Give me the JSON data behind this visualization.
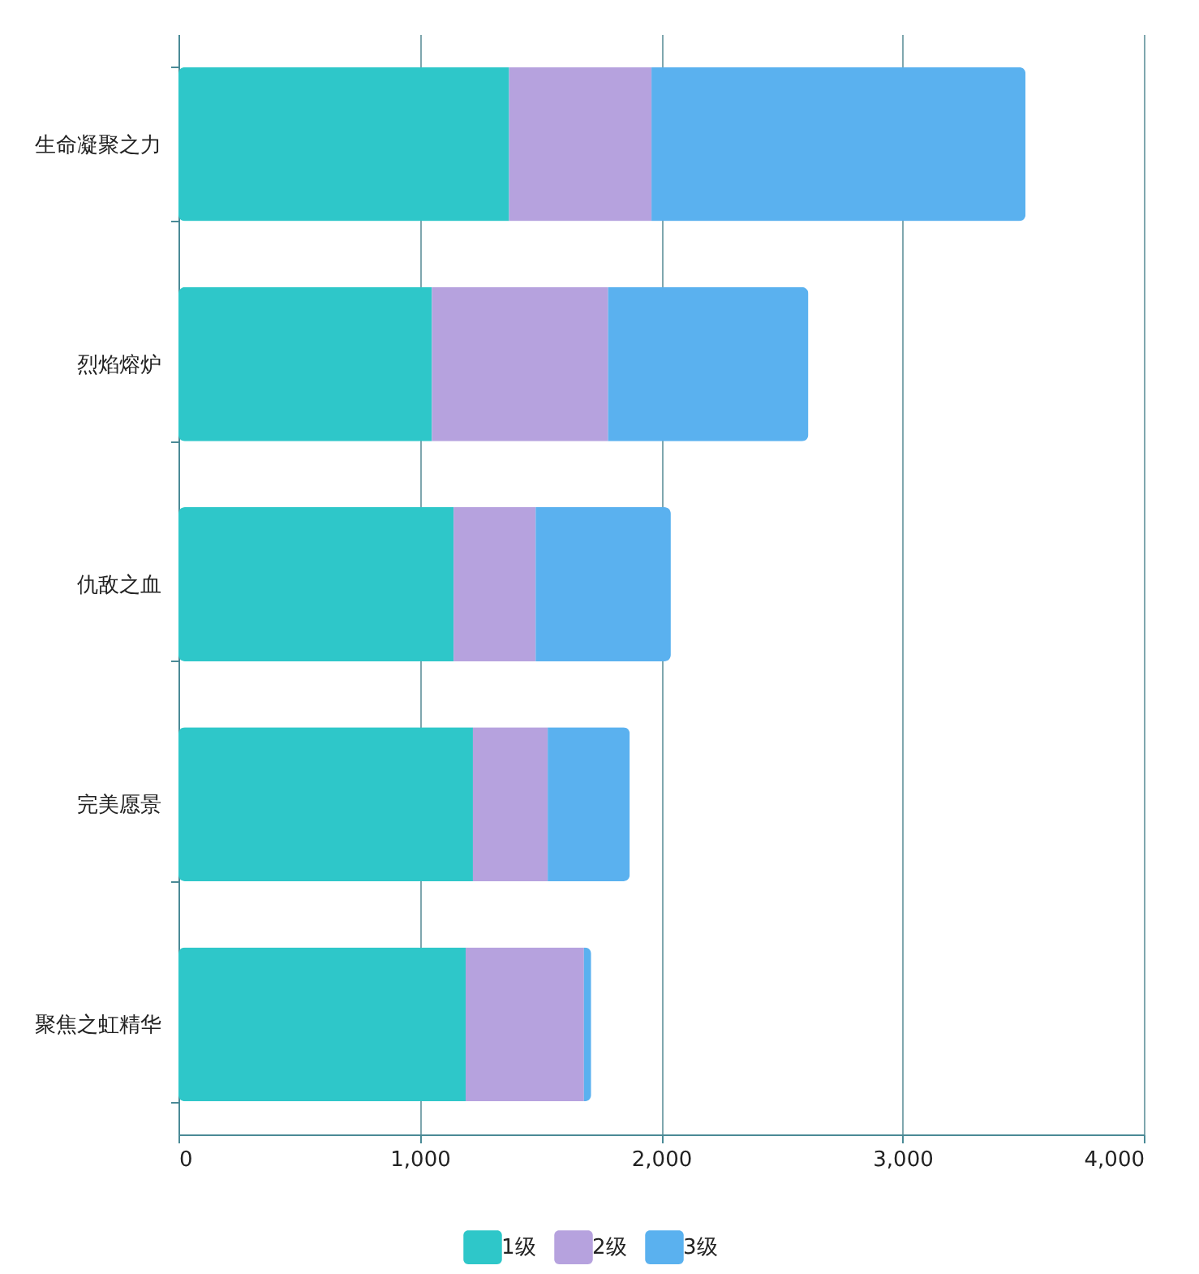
{
  "chart_data": {
    "type": "bar",
    "orientation": "horizontal",
    "stacked": true,
    "categories": [
      "生命凝聚之力",
      "烈焰熔炉",
      "仇敌之血",
      "完美愿景",
      "聚焦之虹精华"
    ],
    "series": [
      {
        "name": "1级",
        "color": "#2ec7c9",
        "values": [
          1370,
          1050,
          1140,
          1220,
          1190
        ]
      },
      {
        "name": "2级",
        "color": "#b6a2de",
        "values": [
          590,
          730,
          340,
          310,
          490
        ]
      },
      {
        "name": "3级",
        "color": "#5ab1ef",
        "values": [
          1550,
          830,
          560,
          340,
          30
        ]
      }
    ],
    "xlim": [
      0,
      4000
    ],
    "xticks": [
      0,
      {
        "value": 1000,
        "label": "1,000"
      },
      {
        "value": 2000,
        "label": "2,000"
      },
      {
        "value": 3000,
        "label": "3,000"
      },
      {
        "value": 4000,
        "label": "4,000"
      }
    ],
    "grid": "x",
    "legend": "bottom"
  }
}
